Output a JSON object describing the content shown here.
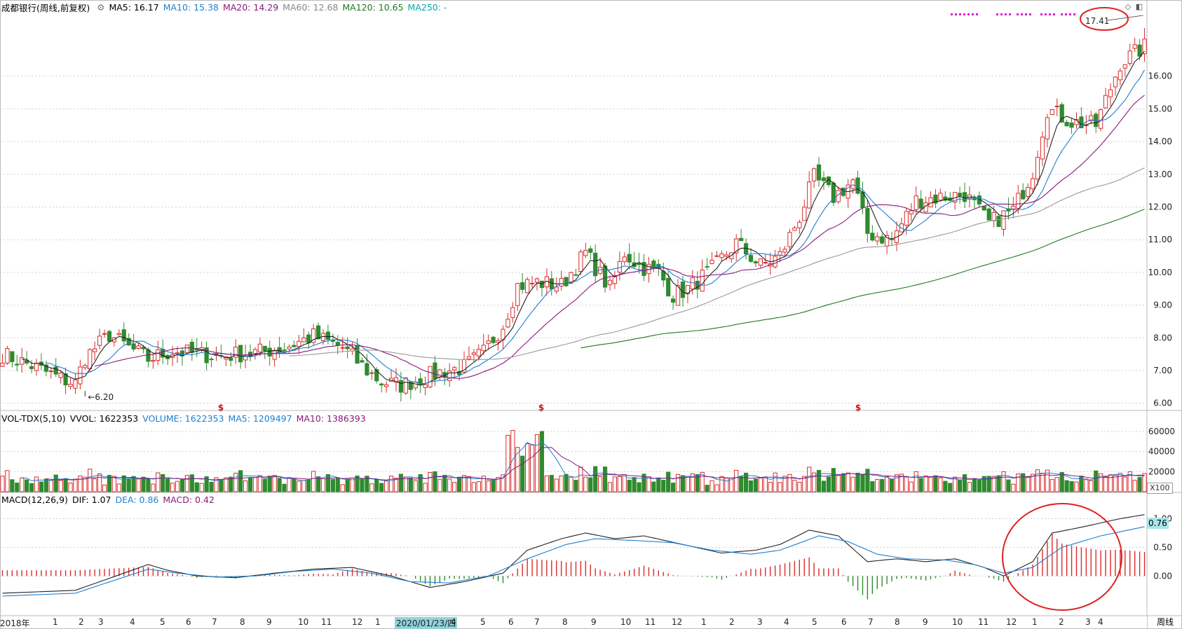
{
  "header_main": {
    "symbol": "成都银行(周线,前复权)",
    "ma5": "MA5: 16.17",
    "ma10": "MA10: 15.38",
    "ma20": "MA20: 14.29",
    "ma60": "MA60: 12.68",
    "ma120": "MA120: 10.65",
    "ma250": "MA250: -"
  },
  "header_vol": {
    "name": "VOL-TDX(5,10)",
    "vvol": "VVOL: 1622353",
    "volume": "VOLUME: 1622353",
    "ma5": "MA5: 1209497",
    "ma10": "MA10: 1386393"
  },
  "header_macd": {
    "name": "MACD(12,26,9)",
    "dif": "DIF: 1.07",
    "dea": "DEA: 0.86",
    "macd": "MACD: 0.42"
  },
  "macd_badge": "0.76",
  "vol_unit": "X100",
  "cursor_date": "2020/01/23/四",
  "period_label": "周线",
  "high_label": "17.41",
  "low_label": "6.20",
  "dividend_marker": "$",
  "colors": {
    "up": "#d92b2b",
    "down": "#2e8b2e",
    "ma5": "#222222",
    "ma10": "#1f7fd0",
    "ma20": "#8b1a7a",
    "ma60": "#999999",
    "ma120": "#1e7a1e",
    "ma250": "#00aaaa",
    "annotation": "#e02020",
    "dots": "#e020d0"
  },
  "chart_data": {
    "type": "candlestick",
    "title": "成都银行(周线,前复权)",
    "x_labels": [
      "2018年",
      "1",
      "2",
      "3",
      "4",
      "5",
      "6",
      "7",
      "8",
      "9",
      "10",
      "11",
      "12",
      "1",
      "2020/01/23/四",
      "4",
      "5",
      "6",
      "7",
      "8",
      "9",
      "10",
      "11",
      "12",
      "1",
      "2",
      "3",
      "4",
      "5",
      "6",
      "7",
      "8",
      "9",
      "10",
      "11",
      "12",
      "1",
      "2",
      "3",
      "4"
    ],
    "price_axis": {
      "ticks": [
        6.0,
        7.0,
        8.0,
        9.0,
        10.0,
        11.0,
        12.0,
        13.0,
        14.0,
        15.0,
        16.0
      ],
      "range": [
        5.8,
        17.9
      ]
    },
    "weekly_close_path": [
      [
        0,
        7.5
      ],
      [
        6,
        7.15
      ],
      [
        12,
        6.75
      ],
      [
        15,
        6.6
      ],
      [
        17,
        7.4
      ],
      [
        22,
        8.1
      ],
      [
        26,
        7.7
      ],
      [
        30,
        7.35
      ],
      [
        35,
        7.6
      ],
      [
        40,
        7.5
      ],
      [
        45,
        7.45
      ],
      [
        52,
        7.55
      ],
      [
        58,
        7.7
      ],
      [
        64,
        8.05
      ],
      [
        70,
        7.7
      ],
      [
        75,
        7.0
      ],
      [
        78,
        6.65
      ],
      [
        82,
        6.55
      ],
      [
        86,
        6.75
      ],
      [
        90,
        6.95
      ],
      [
        95,
        7.1
      ],
      [
        99,
        7.55
      ],
      [
        103,
        8.4
      ],
      [
        106,
        9.6
      ],
      [
        110,
        9.7
      ],
      [
        115,
        9.6
      ],
      [
        120,
        10.6
      ],
      [
        125,
        9.5
      ],
      [
        128,
        10.6
      ],
      [
        131,
        10.2
      ],
      [
        135,
        10.0
      ],
      [
        138,
        9.3
      ],
      [
        141,
        9.5
      ],
      [
        146,
        10.1
      ],
      [
        151,
        10.9
      ],
      [
        156,
        10.2
      ],
      [
        160,
        10.5
      ],
      [
        164,
        11.7
      ],
      [
        167,
        12.9
      ],
      [
        171,
        12.3
      ],
      [
        175,
        12.8
      ],
      [
        178,
        11.2
      ],
      [
        183,
        11.0
      ],
      [
        188,
        12.2
      ],
      [
        193,
        12.3
      ],
      [
        198,
        12.4
      ],
      [
        203,
        11.5
      ],
      [
        208,
        11.9
      ],
      [
        212,
        13.1
      ],
      [
        215,
        15.0
      ],
      [
        220,
        14.6
      ],
      [
        225,
        14.5
      ],
      [
        230,
        16.4
      ],
      [
        235,
        16.9
      ]
    ],
    "ma_last": {
      "MA5": 16.17,
      "MA10": 15.38,
      "MA20": 14.29,
      "MA60": 12.68,
      "MA120": 10.65
    },
    "high": 17.41,
    "low": 6.2,
    "volume": {
      "ticks": [
        20000,
        40000,
        60000
      ],
      "bars_max": 62000,
      "last": 1622353,
      "ma5": 1209497,
      "ma10": 1386393
    },
    "macd": {
      "ticks": [
        0.0,
        0.5,
        1.0
      ],
      "range": [
        -0.68,
        1.25
      ],
      "dif_path": [
        [
          0,
          -0.3
        ],
        [
          15,
          -0.25
        ],
        [
          25,
          0.05
        ],
        [
          30,
          0.2
        ],
        [
          34,
          0.1
        ],
        [
          40,
          0.0
        ],
        [
          48,
          -0.03
        ],
        [
          56,
          0.05
        ],
        [
          64,
          0.12
        ],
        [
          72,
          0.15
        ],
        [
          80,
          0.0
        ],
        [
          88,
          -0.2
        ],
        [
          95,
          -0.1
        ],
        [
          103,
          0.05
        ],
        [
          108,
          0.45
        ],
        [
          115,
          0.65
        ],
        [
          120,
          0.75
        ],
        [
          126,
          0.65
        ],
        [
          132,
          0.7
        ],
        [
          140,
          0.55
        ],
        [
          148,
          0.4
        ],
        [
          155,
          0.45
        ],
        [
          160,
          0.55
        ],
        [
          166,
          0.8
        ],
        [
          172,
          0.7
        ],
        [
          178,
          0.25
        ],
        [
          184,
          0.3
        ],
        [
          190,
          0.25
        ],
        [
          196,
          0.3
        ],
        [
          202,
          0.15
        ],
        [
          206,
          0.0
        ],
        [
          212,
          0.25
        ],
        [
          216,
          0.75
        ],
        [
          222,
          0.85
        ],
        [
          230,
          1.0
        ],
        [
          235,
          1.07
        ]
      ],
      "dea_path": [
        [
          0,
          -0.35
        ],
        [
          15,
          -0.3
        ],
        [
          25,
          -0.02
        ],
        [
          30,
          0.12
        ],
        [
          36,
          0.05
        ],
        [
          44,
          -0.02
        ],
        [
          52,
          0.0
        ],
        [
          60,
          0.08
        ],
        [
          68,
          0.12
        ],
        [
          76,
          0.05
        ],
        [
          84,
          -0.1
        ],
        [
          92,
          -0.12
        ],
        [
          100,
          0.0
        ],
        [
          108,
          0.3
        ],
        [
          116,
          0.55
        ],
        [
          122,
          0.65
        ],
        [
          130,
          0.62
        ],
        [
          138,
          0.58
        ],
        [
          146,
          0.45
        ],
        [
          154,
          0.38
        ],
        [
          160,
          0.45
        ],
        [
          168,
          0.7
        ],
        [
          174,
          0.6
        ],
        [
          180,
          0.38
        ],
        [
          186,
          0.3
        ],
        [
          194,
          0.28
        ],
        [
          200,
          0.2
        ],
        [
          206,
          0.05
        ],
        [
          212,
          0.15
        ],
        [
          218,
          0.5
        ],
        [
          226,
          0.7
        ],
        [
          235,
          0.86
        ]
      ],
      "last": {
        "DIF": 1.07,
        "DEA": 0.86,
        "MACD": 0.42
      }
    }
  }
}
